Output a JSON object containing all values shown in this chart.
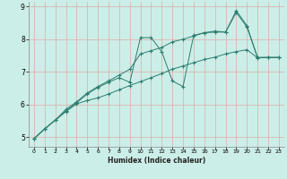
{
  "xlabel": "Humidex (Indice chaleur)",
  "bg_color": "#cceee8",
  "grid_color": "#ddaaaa",
  "line_color": "#2e7d6e",
  "xlim": [
    -0.5,
    23.5
  ],
  "ylim": [
    4.7,
    9.15
  ],
  "xticks": [
    0,
    1,
    2,
    3,
    4,
    5,
    6,
    7,
    8,
    9,
    10,
    11,
    12,
    13,
    14,
    15,
    16,
    17,
    18,
    19,
    20,
    21,
    22,
    23
  ],
  "yticks": [
    5,
    6,
    7,
    8,
    9
  ],
  "line1": [
    4.95,
    5.25,
    5.52,
    5.78,
    6.02,
    6.12,
    6.2,
    6.32,
    6.45,
    6.58,
    6.7,
    6.82,
    6.95,
    7.08,
    7.18,
    7.28,
    7.38,
    7.45,
    7.55,
    7.62,
    7.68,
    7.43,
    7.44,
    7.44
  ],
  "line2": [
    4.95,
    5.25,
    5.52,
    5.8,
    6.05,
    6.32,
    6.52,
    6.68,
    6.82,
    6.68,
    8.05,
    8.05,
    7.62,
    6.72,
    6.55,
    8.12,
    8.2,
    8.22,
    8.22,
    8.82,
    8.38,
    7.44,
    7.44,
    7.44
  ],
  "line3": [
    4.95,
    5.25,
    5.52,
    5.85,
    6.08,
    6.35,
    6.55,
    6.72,
    6.9,
    7.08,
    7.55,
    7.65,
    7.75,
    7.92,
    8.0,
    8.1,
    8.2,
    8.25,
    8.22,
    8.88,
    8.42,
    7.44,
    7.44,
    7.44
  ]
}
